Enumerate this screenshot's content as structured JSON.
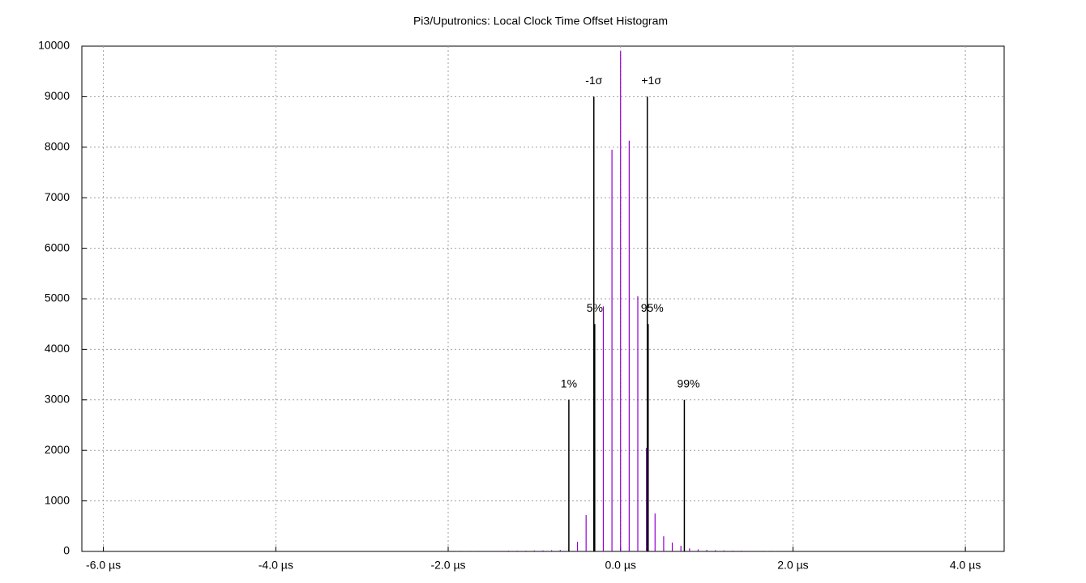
{
  "chart_data": {
    "type": "impulse",
    "title": "Pi3/Uputronics: Local Clock Time Offset Histogram",
    "xlim": [
      -6.25,
      4.45
    ],
    "ylim": [
      0,
      10000
    ],
    "xticks": [
      {
        "value": -6,
        "label": "-6.0 µs"
      },
      {
        "value": -4,
        "label": "-4.0 µs"
      },
      {
        "value": -2,
        "label": "-2.0 µs"
      },
      {
        "value": 0,
        "label": "0.0 µs"
      },
      {
        "value": 2,
        "label": "2.0 µs"
      },
      {
        "value": 4,
        "label": "4.0 µs"
      }
    ],
    "yticks": [
      0,
      1000,
      2000,
      3000,
      4000,
      5000,
      6000,
      7000,
      8000,
      9000,
      10000
    ],
    "grid": true,
    "series": [
      {
        "color": "#9400d3",
        "x": [
          -2.0,
          -1.9,
          -1.8,
          -1.7,
          -1.6,
          -1.5,
          -1.4,
          -1.3,
          -1.2,
          -1.1,
          -1.0,
          -0.9,
          -0.8,
          -0.7,
          -0.6,
          -0.5,
          -0.4,
          -0.3,
          -0.2,
          -0.1,
          0.0,
          0.1,
          0.2,
          0.3,
          0.4,
          0.5,
          0.6,
          0.7,
          0.8,
          0.9,
          1.0,
          1.1,
          1.2,
          1.3,
          1.4,
          1.5,
          1.6,
          1.7,
          1.8
        ],
        "values": [
          5,
          5,
          5,
          5,
          10,
          10,
          10,
          15,
          15,
          15,
          20,
          20,
          25,
          30,
          50,
          190,
          720,
          2150,
          4850,
          7950,
          9900,
          8130,
          5050,
          2050,
          750,
          300,
          175,
          110,
          60,
          40,
          30,
          25,
          20,
          15,
          15,
          10,
          10,
          5,
          5
        ]
      }
    ],
    "markers": [
      {
        "label": "1%",
        "x": -0.6,
        "value": 3000,
        "color": "#000000"
      },
      {
        "label": "5%",
        "x": -0.3,
        "value": 4500,
        "color": "#000000"
      },
      {
        "label": "-1σ",
        "x": -0.31,
        "value": 9000,
        "color": "#000000"
      },
      {
        "label": "+1σ",
        "x": 0.31,
        "value": 9000,
        "color": "#000000"
      },
      {
        "label": "95%",
        "x": 0.32,
        "value": 4500,
        "color": "#000000"
      },
      {
        "label": "99%",
        "x": 0.74,
        "value": 3000,
        "color": "#000000"
      }
    ]
  }
}
